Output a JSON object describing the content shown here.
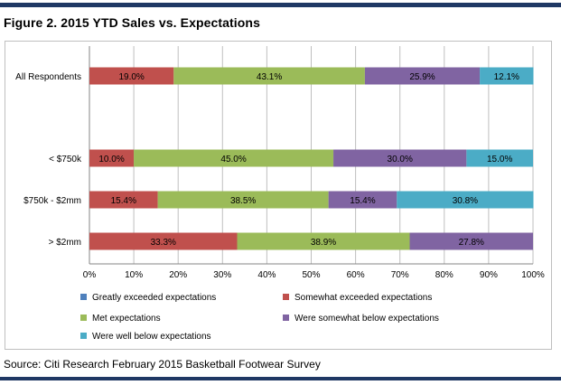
{
  "figure": {
    "title": "Figure 2. 2015 YTD Sales vs. Expectations",
    "source": "Source: Citi Research February 2015 Basketball Footwear Survey"
  },
  "chart_data": {
    "type": "bar",
    "orientation": "horizontal",
    "stacked": true,
    "percent_stacked": true,
    "categories": [
      "All Respondents",
      "< $750k",
      "$750k - $2mm",
      "> $2mm"
    ],
    "xlim": [
      0,
      100
    ],
    "x_ticks": [
      "0%",
      "10%",
      "20%",
      "30%",
      "40%",
      "50%",
      "60%",
      "70%",
      "80%",
      "90%",
      "100%"
    ],
    "grid": true,
    "legend_position": "bottom",
    "series": [
      {
        "name": "Greatly exceeded expectations",
        "color": "#4f81bd",
        "values": [
          0,
          0,
          0,
          0
        ],
        "labels": [
          "",
          "",
          "",
          ""
        ]
      },
      {
        "name": "Somewhat exceeded expectations",
        "color": "#c0504d",
        "values": [
          19.0,
          10.0,
          15.4,
          33.3
        ],
        "labels": [
          "19.0%",
          "10.0%",
          "15.4%",
          "33.3%"
        ]
      },
      {
        "name": "Met expectations",
        "color": "#9bbb59",
        "values": [
          43.1,
          45.0,
          38.5,
          38.9
        ],
        "labels": [
          "43.1%",
          "45.0%",
          "38.5%",
          "38.9%"
        ]
      },
      {
        "name": "Were somewhat below expectations",
        "color": "#8064a2",
        "values": [
          25.9,
          30.0,
          15.4,
          27.8
        ],
        "labels": [
          "25.9%",
          "30.0%",
          "15.4%",
          "27.8%"
        ]
      },
      {
        "name": "Were well below expectations",
        "color": "#4bacc6",
        "values": [
          12.1,
          15.0,
          30.8,
          0
        ],
        "labels": [
          "12.1%",
          "15.0%",
          "30.8%",
          ""
        ]
      }
    ]
  }
}
